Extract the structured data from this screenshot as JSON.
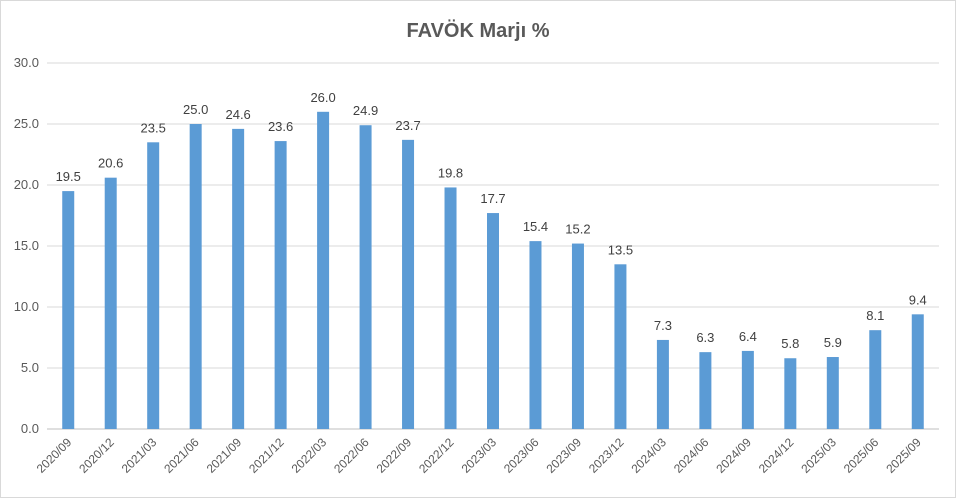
{
  "chart_data": {
    "type": "bar",
    "title": "FAVÖK Marjı %",
    "xlabel": "",
    "ylabel": "",
    "categories": [
      "2020/09",
      "2020/12",
      "2021/03",
      "2021/06",
      "2021/09",
      "2021/12",
      "2022/03",
      "2022/06",
      "2022/09",
      "2022/12",
      "2023/03",
      "2023/06",
      "2023/09",
      "2023/12",
      "2024/03",
      "2024/06",
      "2024/09",
      "2024/12",
      "2025/03",
      "2025/06",
      "2025/09"
    ],
    "values": [
      19.5,
      20.6,
      23.5,
      25.0,
      24.6,
      23.6,
      26.0,
      24.9,
      23.7,
      19.8,
      17.7,
      15.4,
      15.2,
      13.5,
      7.3,
      6.3,
      6.4,
      5.8,
      5.9,
      8.1,
      9.4
    ],
    "data_labels": [
      "19.5",
      "20.6",
      "23.5",
      "25.0",
      "24.6",
      "23.6",
      "26.0",
      "24.9",
      "23.7",
      "19.8",
      "17.7",
      "15.4",
      "15.2",
      "13.5",
      "7.3",
      "6.3",
      "6.4",
      "5.8",
      "5.9",
      "8.1",
      "9.4"
    ],
    "ylim": [
      0,
      30
    ],
    "yticks": [
      "0.0",
      "5.0",
      "10.0",
      "15.0",
      "20.0",
      "25.0",
      "30.0"
    ],
    "ytick_values": [
      0,
      5,
      10,
      15,
      20,
      25,
      30
    ],
    "grid": true,
    "legend": "none",
    "colors": {
      "bar": "#5b9bd5"
    }
  }
}
